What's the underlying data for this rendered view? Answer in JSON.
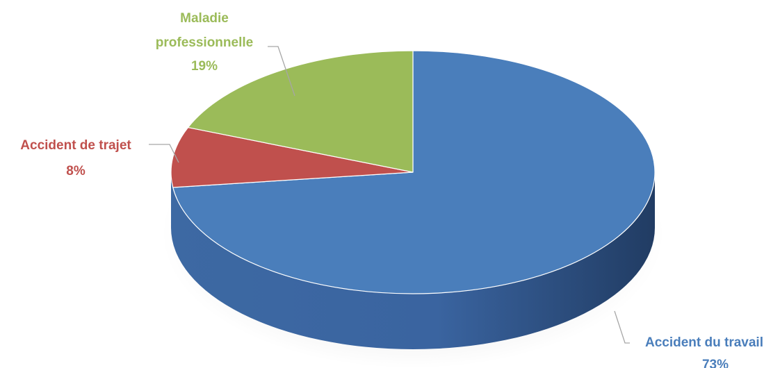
{
  "chart_data": {
    "type": "pie",
    "title": "",
    "style": "3d",
    "slices": [
      {
        "name": "Accident du travail",
        "value": 73,
        "label": "73%",
        "color": "#4a7ebb"
      },
      {
        "name": "Accident de trajet",
        "value": 8,
        "label": "8%",
        "color": "#c0504d"
      },
      {
        "name": "Maladie professionnelle",
        "value": 19,
        "label": "19%",
        "color": "#9bbb59"
      }
    ],
    "legend": "none",
    "label_lines": {
      "slice_0": [
        "Accident du travail"
      ],
      "slice_1": [
        "Accident de trajet"
      ],
      "slice_2": [
        "Maladie",
        "professionnelle"
      ]
    }
  }
}
